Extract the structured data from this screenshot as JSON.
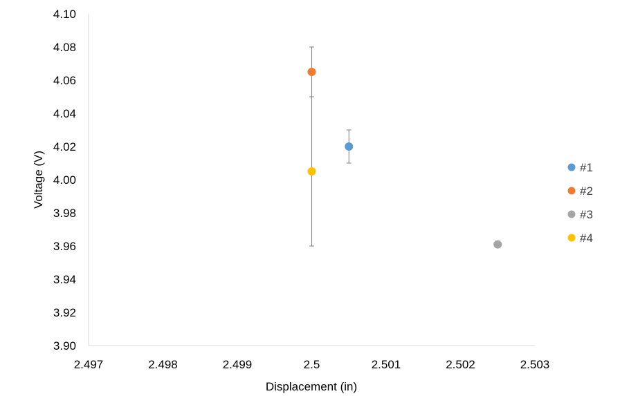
{
  "chart_data": {
    "type": "scatter",
    "title": "",
    "xlabel": "Displacement (in)",
    "ylabel": "Voltage (V)",
    "xlim": [
      2.497,
      2.503
    ],
    "ylim": [
      3.9,
      4.1
    ],
    "x_ticks": [
      2.497,
      2.498,
      2.499,
      2.5,
      2.501,
      2.502,
      2.503
    ],
    "x_tick_labels": [
      "2.497",
      "2.498",
      "2.499",
      "2.5",
      "2.501",
      "2.502",
      "2.503"
    ],
    "y_ticks": [
      3.9,
      3.92,
      3.94,
      3.96,
      3.98,
      4.0,
      4.02,
      4.04,
      4.06,
      4.08,
      4.1
    ],
    "y_tick_labels": [
      "3.90",
      "3.92",
      "3.94",
      "3.96",
      "3.98",
      "4.00",
      "4.02",
      "4.04",
      "4.06",
      "4.08",
      "4.10"
    ],
    "grid": false,
    "legend_position": "right",
    "series": [
      {
        "name": "#1",
        "color": "#5B9BD5",
        "x": 2.5005,
        "y": 4.02,
        "y_err_low": 4.01,
        "y_err_high": 4.03
      },
      {
        "name": "#2",
        "color": "#ED7D31",
        "x": 2.5,
        "y": 4.065,
        "y_err_low": 4.05,
        "y_err_high": 4.08
      },
      {
        "name": "#3",
        "color": "#A5A5A5",
        "x": 2.5025,
        "y": 3.961,
        "y_err_low": 3.959,
        "y_err_high": 3.963
      },
      {
        "name": "#4",
        "color": "#FFC000",
        "x": 2.5,
        "y": 4.005,
        "y_err_low": 3.96,
        "y_err_high": 4.05
      }
    ]
  }
}
